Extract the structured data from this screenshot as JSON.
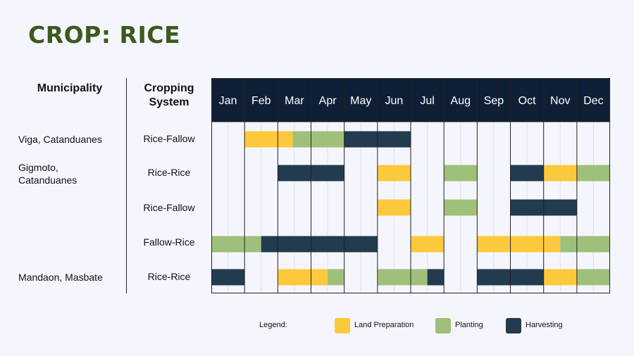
{
  "title": "CROP: RICE",
  "headers": {
    "municipality": "Municipality",
    "cropping_system_line1": "Cropping",
    "cropping_system_line2": "System"
  },
  "rows": [
    {
      "municipality_line1": "Viga, Catanduanes",
      "municipality_line2": "",
      "system": "Rice-Fallow"
    },
    {
      "municipality_line1": "Gigmoto,",
      "municipality_line2": "Catanduanes",
      "system": "Rice-Rice"
    },
    {
      "municipality_line1": "",
      "municipality_line2": "",
      "system": "Rice-Fallow"
    },
    {
      "municipality_line1": "",
      "municipality_line2": "",
      "system": "Fallow-Rice"
    },
    {
      "municipality_line1": "Mandaon, Masbate",
      "municipality_line2": "",
      "system": "Rice-Rice"
    }
  ],
  "legend": {
    "label": "Legend:",
    "items": [
      {
        "name": "Land Preparation",
        "color": "#fcc93c"
      },
      {
        "name": "Planting",
        "color": "#9fc07a"
      },
      {
        "name": "Harvesting",
        "color": "#233b4e"
      }
    ]
  },
  "colors": {
    "header_bg": "#0f2036",
    "grid": "#222222",
    "title": "#3c5a1f"
  },
  "chart_data": {
    "type": "gantt",
    "x_unit": "month (0 = start of Jan, 12 = end of Dec)",
    "months": [
      "Jan",
      "Feb",
      "Mar",
      "Apr",
      "May",
      "Jun",
      "Jul",
      "Aug",
      "Sep",
      "Oct",
      "Nov",
      "Dec"
    ],
    "activities": [
      "Land Preparation",
      "Planting",
      "Harvesting"
    ],
    "rows": [
      {
        "row": 0,
        "tasks": [
          {
            "activity": "Land Preparation",
            "start": 1.0,
            "end": 2.45
          },
          {
            "activity": "Planting",
            "start": 2.45,
            "end": 4.0
          },
          {
            "activity": "Harvesting",
            "start": 4.0,
            "end": 6.0
          }
        ]
      },
      {
        "row": 1,
        "tasks": [
          {
            "activity": "Harvesting",
            "start": 2.0,
            "end": 4.0
          },
          {
            "activity": "Land Preparation",
            "start": 5.0,
            "end": 6.0
          },
          {
            "activity": "Planting",
            "start": 7.0,
            "end": 8.0
          },
          {
            "activity": "Harvesting",
            "start": 9.0,
            "end": 10.0
          },
          {
            "activity": "Land Preparation",
            "start": 10.0,
            "end": 11.0
          },
          {
            "activity": "Planting",
            "start": 11.0,
            "end": 12.0
          }
        ]
      },
      {
        "row": 2,
        "tasks": [
          {
            "activity": "Land Preparation",
            "start": 5.0,
            "end": 6.0
          },
          {
            "activity": "Planting",
            "start": 7.0,
            "end": 8.0
          },
          {
            "activity": "Harvesting",
            "start": 9.0,
            "end": 11.0
          }
        ]
      },
      {
        "row": 3,
        "tasks": [
          {
            "activity": "Planting",
            "start": 0.0,
            "end": 1.5
          },
          {
            "activity": "Harvesting",
            "start": 1.5,
            "end": 5.0
          },
          {
            "activity": "Land Preparation",
            "start": 6.0,
            "end": 7.0
          },
          {
            "activity": "Land Preparation",
            "start": 8.0,
            "end": 10.5
          },
          {
            "activity": "Planting",
            "start": 10.5,
            "end": 12.0
          }
        ]
      },
      {
        "row": 4,
        "tasks": [
          {
            "activity": "Harvesting",
            "start": 0.0,
            "end": 1.0
          },
          {
            "activity": "Land Preparation",
            "start": 2.0,
            "end": 3.5
          },
          {
            "activity": "Planting",
            "start": 3.5,
            "end": 4.0
          },
          {
            "activity": "Planting",
            "start": 5.0,
            "end": 6.5
          },
          {
            "activity": "Harvesting",
            "start": 6.5,
            "end": 7.0
          },
          {
            "activity": "Harvesting",
            "start": 8.0,
            "end": 10.0
          },
          {
            "activity": "Land Preparation",
            "start": 10.0,
            "end": 11.0
          },
          {
            "activity": "Planting",
            "start": 11.0,
            "end": 12.0
          }
        ]
      }
    ]
  }
}
